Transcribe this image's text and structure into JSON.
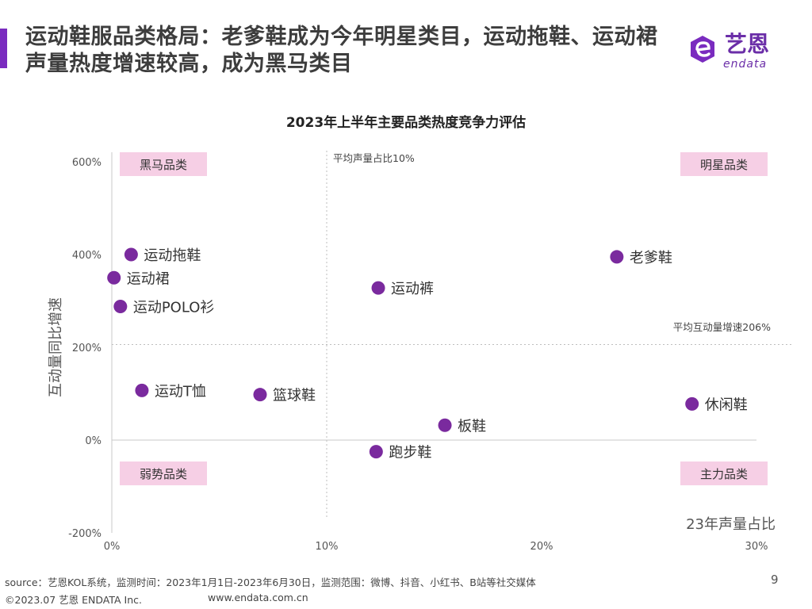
{
  "header": {
    "title": "运动鞋服品类格局：老爹鞋成为今年明星类目，运动拖鞋、运动裙声量热度增速较高，成为黑马类目",
    "accent_color": "#7a2bbf"
  },
  "logo": {
    "cn": "艺恩",
    "en": "endata",
    "icon": "endata-logo-icon"
  },
  "chart_data": {
    "type": "scatter",
    "title": "2023年上半年主要品类热度竞争力评估",
    "xlabel": "23年声量占比",
    "ylabel": "互动量同比增速",
    "xlim": [
      0,
      30
    ],
    "ylim": [
      -200,
      600
    ],
    "x_ticks": [
      "0%",
      "10%",
      "20%",
      "30%"
    ],
    "y_ticks": [
      "600%",
      "400%",
      "200%",
      "0%",
      "-200%"
    ],
    "x_tick_values": [
      0,
      10,
      20,
      30
    ],
    "y_tick_values": [
      600,
      400,
      200,
      0,
      -200
    ],
    "grid": false,
    "point_color": "#7a2a9e",
    "points": [
      {
        "label": "运动拖鞋",
        "x": 0.9,
        "y": 400
      },
      {
        "label": "运动裙",
        "x": 0.1,
        "y": 350
      },
      {
        "label": "运动POLO衫",
        "x": 0.4,
        "y": 288
      },
      {
        "label": "运动裤",
        "x": 12.4,
        "y": 328
      },
      {
        "label": "老爹鞋",
        "x": 23.5,
        "y": 395
      },
      {
        "label": "运动T恤",
        "x": 1.4,
        "y": 107
      },
      {
        "label": "篮球鞋",
        "x": 6.9,
        "y": 98
      },
      {
        "label": "板鞋",
        "x": 15.5,
        "y": 32
      },
      {
        "label": "跑步鞋",
        "x": 12.3,
        "y": -25
      },
      {
        "label": "休闲鞋",
        "x": 27.0,
        "y": 78
      }
    ],
    "reference_lines": {
      "x_avg": {
        "value": 10,
        "label": "平均声量占比10%"
      },
      "y_avg": {
        "value": 206,
        "label": "平均互动量增速206%"
      }
    },
    "quadrants": {
      "top_left": "黑马品类",
      "top_right": "明星品类",
      "bottom_left": "弱势品类",
      "bottom_right": "主力品类"
    },
    "quadrant_color": "#f6cfe5"
  },
  "footer": {
    "source": "source：艺恩KOL系统，监测时间：2023年1月1日-2023年6月30日，监测范围：微博、抖音、小红书、B站等社交媒体",
    "copyright": "©2023.07 艺恩 ENDATA Inc.",
    "url": "www.endata.com.cn",
    "page_number": "9"
  }
}
